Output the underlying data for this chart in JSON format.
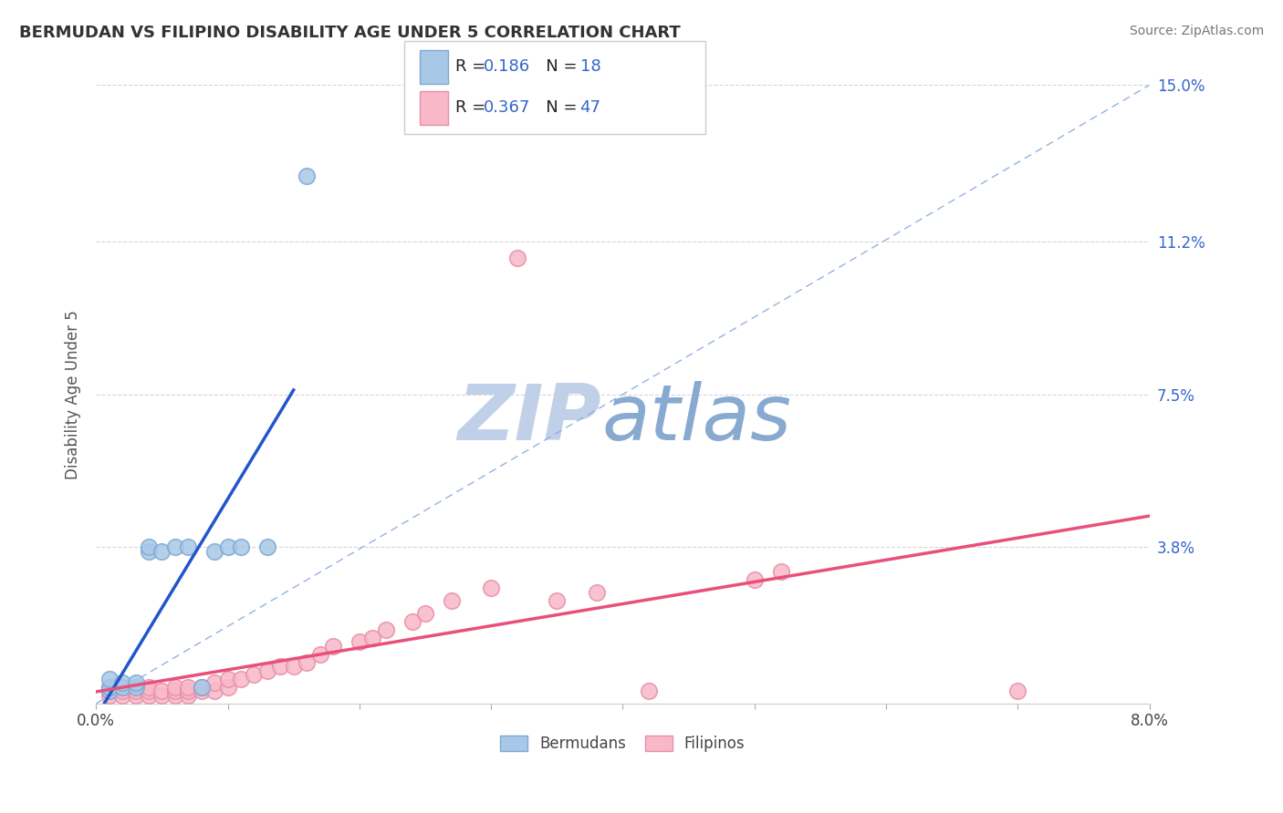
{
  "title": "BERMUDAN VS FILIPINO DISABILITY AGE UNDER 5 CORRELATION CHART",
  "source": "Source: ZipAtlas.com",
  "ylabel": "Disability Age Under 5",
  "legend_r_bermudans": "0.186",
  "legend_n_bermudans": "18",
  "legend_r_filipinos": "0.367",
  "legend_n_filipinos": "47",
  "bermudans_color": "#a8c8e8",
  "filipinos_color": "#f8b8c8",
  "bermudans_edge_color": "#80a8d0",
  "filipinos_edge_color": "#e890a8",
  "bermudans_line_color": "#2255cc",
  "filipinos_line_color": "#e8507a",
  "reference_line_color": "#88aadd",
  "watermark_zip_color": "#c8d8f0",
  "watermark_atlas_color": "#90b8d8",
  "xlim": [
    0.0,
    0.08
  ],
  "ylim": [
    0.0,
    0.15
  ],
  "ytick_vals": [
    0.0,
    0.038,
    0.075,
    0.112,
    0.15
  ],
  "ytick_labels": [
    "",
    "3.8%",
    "7.5%",
    "11.2%",
    "15.0%"
  ],
  "background_color": "#ffffff",
  "grid_color": "#cccccc",
  "berm_x": [
    0.001,
    0.001,
    0.001,
    0.002,
    0.002,
    0.003,
    0.003,
    0.004,
    0.004,
    0.005,
    0.006,
    0.007,
    0.008,
    0.009,
    0.01,
    0.011,
    0.013,
    0.016
  ],
  "berm_y": [
    0.003,
    0.004,
    0.006,
    0.004,
    0.005,
    0.004,
    0.005,
    0.037,
    0.038,
    0.037,
    0.038,
    0.038,
    0.004,
    0.037,
    0.038,
    0.038,
    0.038,
    0.128
  ],
  "fil_x": [
    0.001,
    0.001,
    0.001,
    0.002,
    0.002,
    0.002,
    0.003,
    0.003,
    0.004,
    0.004,
    0.004,
    0.005,
    0.005,
    0.006,
    0.006,
    0.006,
    0.007,
    0.007,
    0.007,
    0.008,
    0.008,
    0.009,
    0.009,
    0.01,
    0.01,
    0.011,
    0.012,
    0.013,
    0.014,
    0.015,
    0.016,
    0.017,
    0.018,
    0.02,
    0.021,
    0.022,
    0.024,
    0.025,
    0.027,
    0.03,
    0.032,
    0.035,
    0.038,
    0.042,
    0.05,
    0.052,
    0.07
  ],
  "fil_y": [
    0.002,
    0.003,
    0.004,
    0.002,
    0.003,
    0.004,
    0.002,
    0.003,
    0.002,
    0.003,
    0.004,
    0.002,
    0.003,
    0.002,
    0.003,
    0.004,
    0.002,
    0.003,
    0.004,
    0.003,
    0.004,
    0.003,
    0.005,
    0.004,
    0.006,
    0.006,
    0.007,
    0.008,
    0.009,
    0.009,
    0.01,
    0.012,
    0.014,
    0.015,
    0.016,
    0.018,
    0.02,
    0.022,
    0.025,
    0.028,
    0.108,
    0.025,
    0.027,
    0.003,
    0.03,
    0.032,
    0.003
  ],
  "berm_line_xrange": [
    0.0,
    0.015
  ],
  "fil_line_xrange": [
    0.0,
    0.08
  ]
}
